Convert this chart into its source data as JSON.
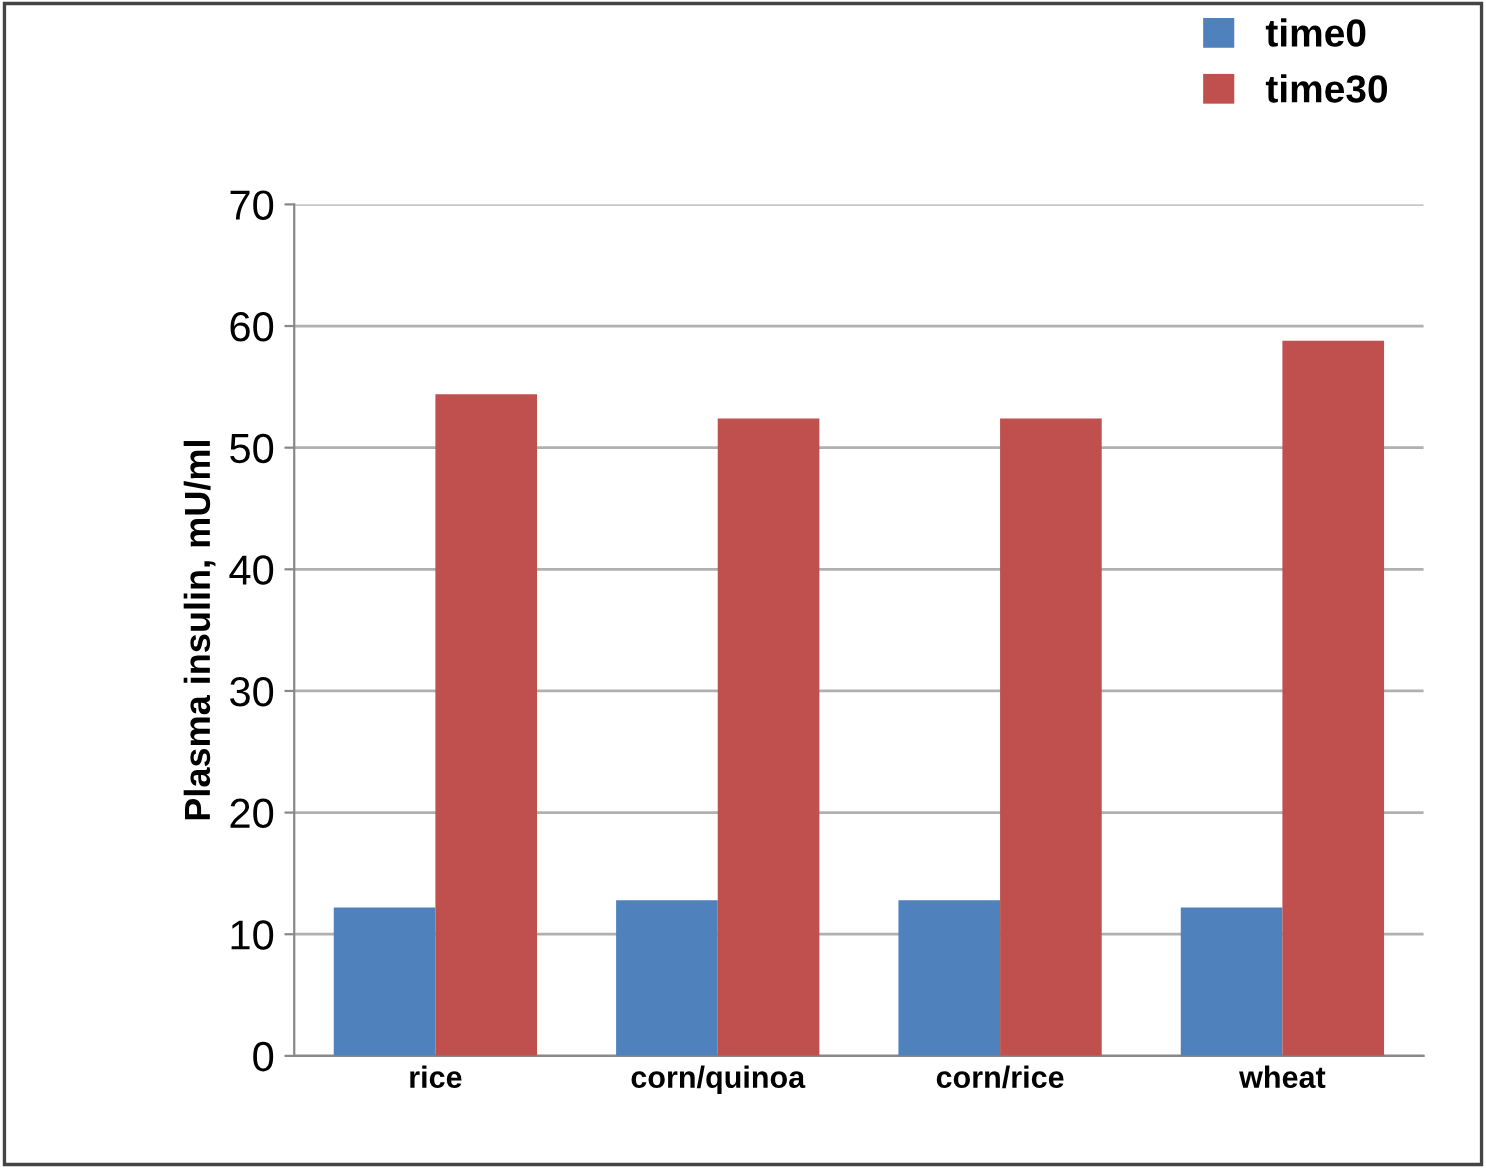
{
  "chart_data": {
    "type": "bar",
    "ylabel": "Plasma insulin, mU/ml",
    "categories": [
      "rice",
      "corn/quinoa",
      "corn/rice",
      "wheat"
    ],
    "series": [
      {
        "name": "time0",
        "color": "#4f81bd",
        "values": [
          12.2,
          12.8,
          12.8,
          12.2
        ]
      },
      {
        "name": "time30",
        "color": "#c0504d",
        "values": [
          54.4,
          52.4,
          52.4,
          58.8
        ]
      }
    ],
    "ylim": [
      0,
      70
    ],
    "yticks": [
      0,
      10,
      20,
      30,
      40,
      50,
      60,
      70
    ],
    "grid": "y",
    "legend": "top right"
  }
}
